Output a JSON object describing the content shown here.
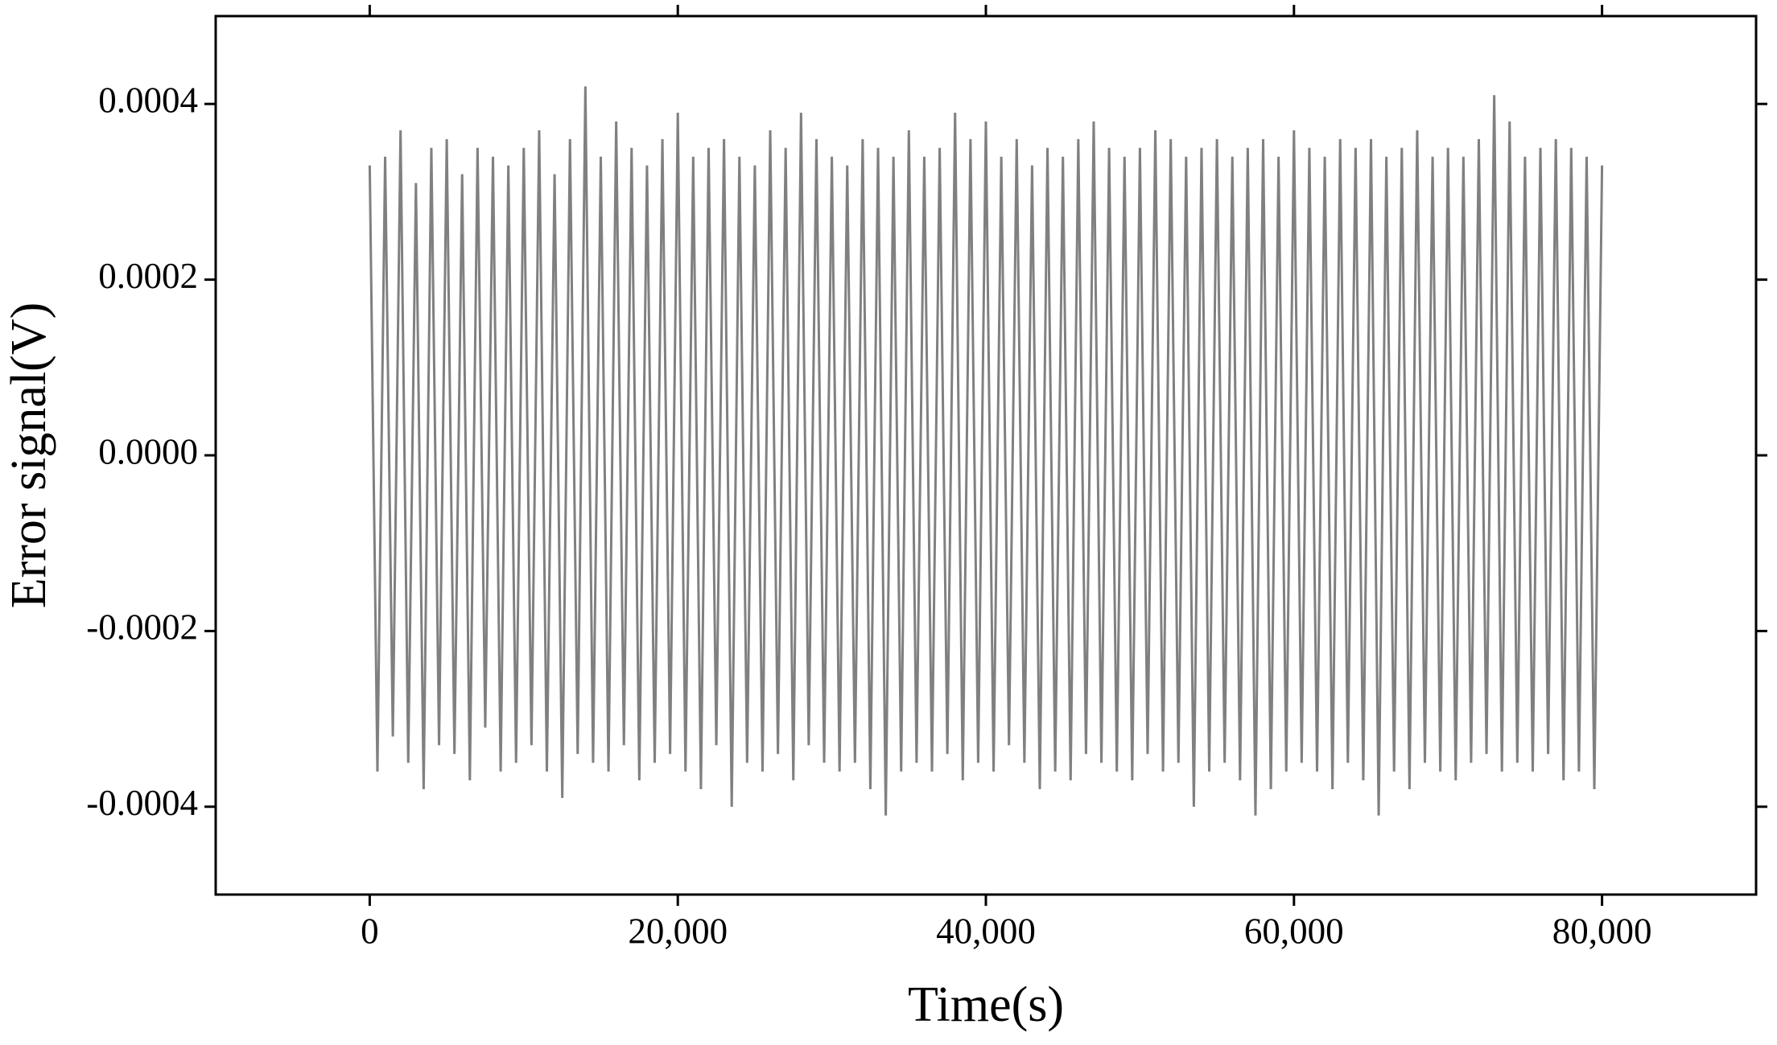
{
  "chart_data": {
    "type": "line",
    "x_label": "Time(s)",
    "y_label": "Error signal(V)",
    "xlim": [
      -10000,
      90000
    ],
    "xticks": [
      0,
      {
        "value": 20000,
        "label": "20,000"
      },
      {
        "value": 40000,
        "label": "40,000"
      },
      {
        "value": 60000,
        "label": "60,000"
      },
      {
        "value": 80000,
        "label": "80,000"
      }
    ],
    "ylim": [
      -0.0005,
      0.0005
    ],
    "yticks": [
      -0.0004,
      -0.0002,
      {
        "value": 0,
        "label": "0.0000"
      },
      0.0002,
      0.0004
    ],
    "grid": false,
    "x": [
      0,
      500,
      1000,
      1500,
      2000,
      2500,
      3000,
      3500,
      4000,
      4500,
      5000,
      5500,
      6000,
      6500,
      7000,
      7500,
      8000,
      8500,
      9000,
      9500,
      10000,
      10500,
      11000,
      11500,
      12000,
      12500,
      13000,
      13500,
      14000,
      14500,
      15000,
      15500,
      16000,
      16500,
      17000,
      17500,
      18000,
      18500,
      19000,
      19500,
      20000,
      20500,
      21000,
      21500,
      22000,
      22500,
      23000,
      23500,
      24000,
      24500,
      25000,
      25500,
      26000,
      26500,
      27000,
      27500,
      28000,
      28500,
      29000,
      29500,
      30000,
      30500,
      31000,
      31500,
      32000,
      32500,
      33000,
      33500,
      34000,
      34500,
      35000,
      35500,
      36000,
      36500,
      37000,
      37500,
      38000,
      38500,
      39000,
      39500,
      40000,
      40500,
      41000,
      41500,
      42000,
      42500,
      43000,
      43500,
      44000,
      44500,
      45000,
      45500,
      46000,
      46500,
      47000,
      47500,
      48000,
      48500,
      49000,
      49500,
      50000,
      50500,
      51000,
      51500,
      52000,
      52500,
      53000,
      53500,
      54000,
      54500,
      55000,
      55500,
      56000,
      56500,
      57000,
      57500,
      58000,
      58500,
      59000,
      59500,
      60000,
      60500,
      61000,
      61500,
      62000,
      62500,
      63000,
      63500,
      64000,
      64500,
      65000,
      65500,
      66000,
      66500,
      67000,
      67500,
      68000,
      68500,
      69000,
      69500,
      70000,
      70500,
      71000,
      71500,
      72000,
      72500,
      73000,
      73500,
      74000,
      74500,
      75000,
      75500,
      76000,
      76500,
      77000,
      77500,
      78000,
      78500,
      79000,
      79500,
      80000
    ],
    "series": [
      {
        "color": "#808080",
        "values": [
          0.00033,
          -0.00036,
          0.00034,
          -0.00032,
          0.00037,
          -0.00035,
          0.00031,
          -0.00038,
          0.00035,
          -0.00033,
          0.00036,
          -0.00034,
          0.00032,
          -0.00037,
          0.00035,
          -0.00031,
          0.00034,
          -0.00036,
          0.00033,
          -0.00035,
          0.00035,
          -0.00033,
          0.00037,
          -0.00036,
          0.00032,
          -0.00039,
          0.00036,
          -0.00034,
          0.00042,
          -0.00035,
          0.00034,
          -0.00036,
          0.00038,
          -0.00033,
          0.00035,
          -0.00037,
          0.00033,
          -0.00035,
          0.00036,
          -0.00034,
          0.00039,
          -0.00036,
          0.00034,
          -0.00038,
          0.00035,
          -0.00033,
          0.00036,
          -0.0004,
          0.00034,
          -0.00035,
          0.00033,
          -0.00036,
          0.00037,
          -0.00034,
          0.00035,
          -0.00037,
          0.00039,
          -0.00033,
          0.00036,
          -0.00035,
          0.00034,
          -0.00036,
          0.00033,
          -0.00035,
          0.00036,
          -0.00038,
          0.00035,
          -0.00041,
          0.00034,
          -0.00036,
          0.00037,
          -0.00035,
          0.00034,
          -0.00036,
          0.00035,
          -0.00034,
          0.00039,
          -0.00037,
          0.00036,
          -0.00035,
          0.00038,
          -0.00036,
          0.00034,
          -0.00033,
          0.00036,
          -0.00035,
          0.00033,
          -0.00038,
          0.00035,
          -0.00036,
          0.00034,
          -0.00037,
          0.00036,
          -0.00034,
          0.00038,
          -0.00035,
          0.00035,
          -0.00036,
          0.00034,
          -0.00037,
          0.00035,
          -0.00034,
          0.00037,
          -0.00036,
          0.00036,
          -0.00035,
          0.00034,
          -0.0004,
          0.00035,
          -0.00036,
          0.00036,
          -0.00035,
          0.00034,
          -0.00037,
          0.00035,
          -0.00041,
          0.00036,
          -0.00038,
          0.00034,
          -0.00036,
          0.00037,
          -0.00035,
          0.00035,
          -0.00036,
          0.00034,
          -0.00038,
          0.00036,
          -0.00035,
          0.00035,
          -0.00037,
          0.00036,
          -0.00041,
          0.00034,
          -0.00036,
          0.00035,
          -0.00038,
          0.00037,
          -0.00035,
          0.00034,
          -0.00036,
          0.00035,
          -0.00037,
          0.00034,
          -0.00035,
          0.00036,
          -0.00034,
          0.00041,
          -0.00036,
          0.00038,
          -0.00035,
          0.00034,
          -0.00036,
          0.00035,
          -0.00034,
          0.00036,
          -0.00037,
          0.00035,
          -0.00036,
          0.00034,
          -0.00038,
          0.00033
        ]
      }
    ]
  }
}
